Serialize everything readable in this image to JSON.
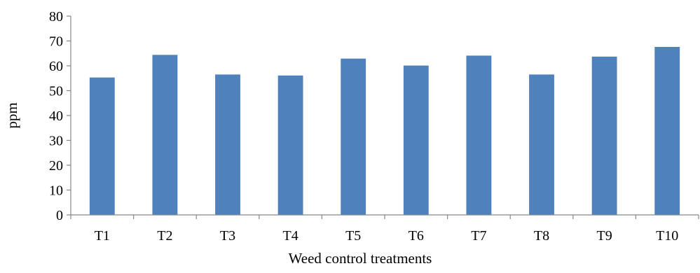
{
  "chart_data": {
    "type": "bar",
    "categories": [
      "T1",
      "T2",
      "T3",
      "T4",
      "T5",
      "T6",
      "T7",
      "T8",
      "T9",
      "T10"
    ],
    "series": [
      {
        "values": [
          55.3,
          64.4,
          56.5,
          56.1,
          62.9,
          60.1,
          64.1,
          56.5,
          63.7,
          67.6
        ]
      }
    ],
    "xlabel": "Weed control treatments",
    "ylabel": "ppm",
    "ylim": [
      0,
      80
    ],
    "yticks": [
      0,
      10,
      20,
      30,
      40,
      50,
      60,
      70,
      80
    ],
    "grid": false,
    "legend": "none",
    "bar_color": "#4f81bd"
  }
}
